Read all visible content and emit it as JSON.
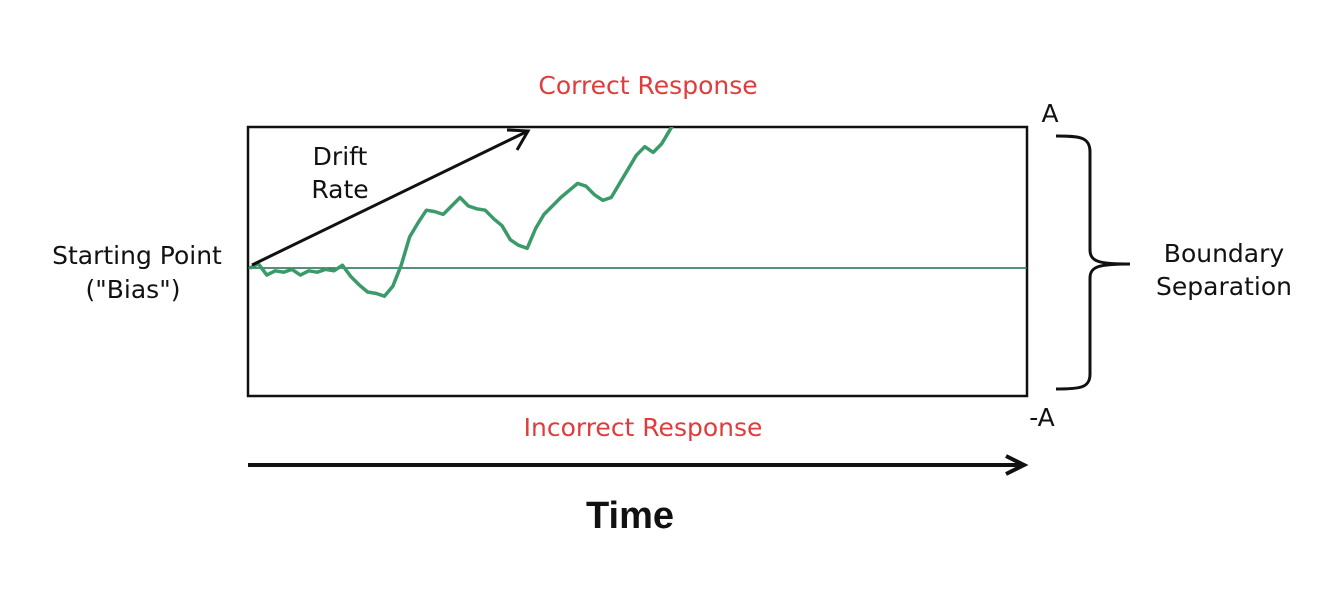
{
  "labels": {
    "correct_response": "Correct Response",
    "incorrect_response": "Incorrect Response",
    "drift_line1": "Drift",
    "drift_line2": "Rate",
    "start_line1": "Starting Point",
    "start_line2": "(\"Bias\")",
    "boundary_line1": "Boundary",
    "boundary_line2": "Separation",
    "upper_bound": "A",
    "lower_bound": "-A",
    "time": "Time"
  },
  "colors": {
    "response_text": "#e03c3c",
    "path": "#3a9a6a",
    "midline": "#1f6b4f",
    "outline": "#111111"
  },
  "chart_data": {
    "type": "line",
    "title": "",
    "xlabel": "Time",
    "ylabel": "",
    "upper_boundary": "A",
    "lower_boundary": "-A",
    "starting_point": 0,
    "series": [
      {
        "name": "",
        "values": [
          0.0,
          0.03,
          -0.05,
          -0.02,
          -0.03,
          -0.01,
          -0.05,
          -0.02,
          -0.03,
          -0.01,
          -0.02,
          0.02,
          -0.06,
          -0.12,
          -0.17,
          -0.18,
          -0.2,
          -0.13,
          0.02,
          0.22,
          0.32,
          0.41,
          0.4,
          0.38,
          0.44,
          0.5,
          0.44,
          0.42,
          0.41,
          0.35,
          0.3,
          0.2,
          0.16,
          0.14,
          0.28,
          0.38,
          0.44,
          0.5,
          0.55,
          0.6,
          0.58,
          0.52,
          0.48,
          0.5,
          0.6,
          0.7,
          0.8,
          0.86,
          0.82,
          0.88,
          0.98,
          1.08,
          1.16
        ]
      }
    ]
  }
}
